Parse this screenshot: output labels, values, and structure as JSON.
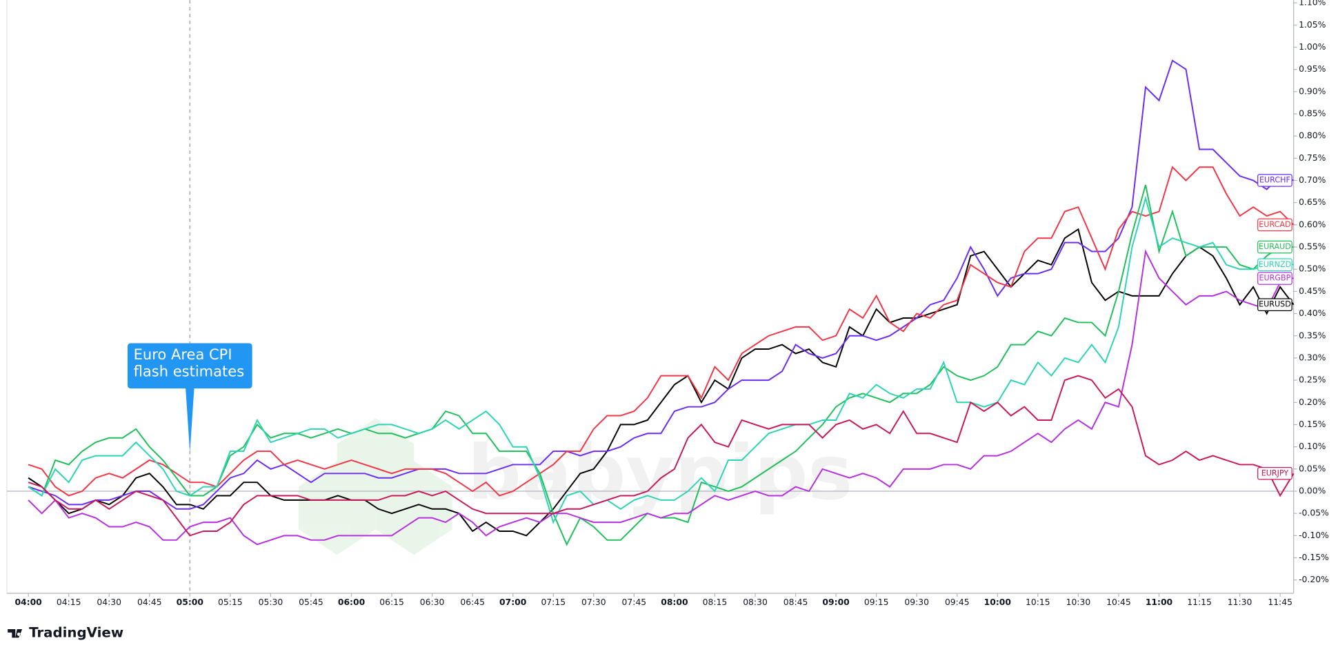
{
  "chart_data": {
    "type": "line",
    "annotation": {
      "lines": [
        "Euro Area CPI",
        "flash estimates"
      ],
      "x": "05:00"
    },
    "watermark": "babypips",
    "footer": "TradingView",
    "x": [
      "04:00",
      "04:05",
      "04:10",
      "04:15",
      "04:20",
      "04:25",
      "04:30",
      "04:35",
      "04:40",
      "04:45",
      "04:50",
      "04:55",
      "05:00",
      "05:05",
      "05:10",
      "05:15",
      "05:20",
      "05:25",
      "05:30",
      "05:35",
      "05:40",
      "05:45",
      "05:50",
      "05:55",
      "06:00",
      "06:05",
      "06:10",
      "06:15",
      "06:20",
      "06:25",
      "06:30",
      "06:35",
      "06:40",
      "06:45",
      "06:50",
      "06:55",
      "07:00",
      "07:05",
      "07:10",
      "07:15",
      "07:20",
      "07:25",
      "07:30",
      "07:35",
      "07:40",
      "07:45",
      "07:50",
      "07:55",
      "08:00",
      "08:05",
      "08:10",
      "08:15",
      "08:20",
      "08:25",
      "08:30",
      "08:35",
      "08:40",
      "08:45",
      "08:50",
      "08:55",
      "09:00",
      "09:05",
      "09:10",
      "09:15",
      "09:20",
      "09:25",
      "09:30",
      "09:35",
      "09:40",
      "09:45",
      "09:50",
      "09:55",
      "10:00",
      "10:05",
      "10:10",
      "10:15",
      "10:20",
      "10:25",
      "10:30",
      "10:35",
      "10:40",
      "10:45",
      "10:50",
      "10:55",
      "11:00",
      "11:05",
      "11:10",
      "11:15",
      "11:20",
      "11:25",
      "11:30",
      "11:35",
      "11:40",
      "11:45",
      "11:50"
    ],
    "series": [
      {
        "name": "EURUSD",
        "color": "#000000",
        "values": [
          0.03,
          0.01,
          -0.02,
          -0.05,
          -0.04,
          -0.02,
          -0.03,
          -0.01,
          0.03,
          0.04,
          0.01,
          -0.03,
          -0.03,
          -0.04,
          -0.01,
          -0.01,
          0.02,
          0.02,
          -0.01,
          -0.02,
          -0.02,
          -0.02,
          -0.02,
          -0.01,
          -0.02,
          -0.02,
          -0.04,
          -0.05,
          -0.04,
          -0.03,
          -0.04,
          -0.04,
          -0.05,
          -0.09,
          -0.07,
          -0.09,
          -0.09,
          -0.1,
          -0.07,
          -0.04,
          0.0,
          0.04,
          0.05,
          0.09,
          0.15,
          0.15,
          0.16,
          0.2,
          0.24,
          0.26,
          0.2,
          0.25,
          0.23,
          0.3,
          0.32,
          0.32,
          0.33,
          0.31,
          0.32,
          0.29,
          0.28,
          0.37,
          0.35,
          0.41,
          0.38,
          0.39,
          0.39,
          0.4,
          0.41,
          0.42,
          0.53,
          0.54,
          0.5,
          0.46,
          0.49,
          0.52,
          0.51,
          0.57,
          0.59,
          0.47,
          0.43,
          0.45,
          0.44,
          0.44,
          0.44,
          0.49,
          0.53,
          0.55,
          0.53,
          0.48,
          0.42,
          0.46,
          0.4,
          0.46,
          0.42
        ]
      },
      {
        "name": "EURCHF",
        "color": "#6a2cf5",
        "values": [
          0.01,
          0.0,
          -0.01,
          -0.03,
          -0.03,
          -0.02,
          -0.02,
          -0.01,
          0.0,
          0.0,
          -0.02,
          -0.04,
          -0.04,
          -0.03,
          0.0,
          0.03,
          0.04,
          0.07,
          0.05,
          0.06,
          0.04,
          0.02,
          0.04,
          0.04,
          0.04,
          0.04,
          0.03,
          0.03,
          0.04,
          0.05,
          0.05,
          0.05,
          0.04,
          0.04,
          0.04,
          0.05,
          0.06,
          0.06,
          0.06,
          0.09,
          0.09,
          0.08,
          0.09,
          0.09,
          0.1,
          0.12,
          0.13,
          0.13,
          0.18,
          0.19,
          0.19,
          0.2,
          0.23,
          0.25,
          0.25,
          0.25,
          0.27,
          0.33,
          0.31,
          0.3,
          0.31,
          0.35,
          0.35,
          0.34,
          0.35,
          0.37,
          0.39,
          0.42,
          0.43,
          0.48,
          0.55,
          0.5,
          0.44,
          0.48,
          0.49,
          0.49,
          0.5,
          0.56,
          0.56,
          0.54,
          0.54,
          0.57,
          0.64,
          0.91,
          0.88,
          0.97,
          0.95,
          0.77,
          0.77,
          0.74,
          0.71,
          0.7,
          0.68,
          0.71,
          0.7
        ]
      },
      {
        "name": "EURCAD",
        "color": "#f23645",
        "values": [
          0.06,
          0.05,
          0.01,
          -0.01,
          0.0,
          0.03,
          0.04,
          0.03,
          0.05,
          0.07,
          0.06,
          0.04,
          0.02,
          0.02,
          0.01,
          0.04,
          0.07,
          0.09,
          0.09,
          0.06,
          0.07,
          0.06,
          0.05,
          0.06,
          0.07,
          0.06,
          0.05,
          0.04,
          0.05,
          0.05,
          0.05,
          0.04,
          0.02,
          0.0,
          0.02,
          -0.01,
          0.0,
          0.02,
          0.04,
          0.06,
          0.09,
          0.09,
          0.14,
          0.17,
          0.17,
          0.18,
          0.21,
          0.26,
          0.26,
          0.26,
          0.21,
          0.28,
          0.25,
          0.31,
          0.33,
          0.35,
          0.36,
          0.37,
          0.37,
          0.34,
          0.35,
          0.41,
          0.39,
          0.44,
          0.38,
          0.36,
          0.4,
          0.39,
          0.42,
          0.43,
          0.51,
          0.49,
          0.47,
          0.46,
          0.54,
          0.57,
          0.57,
          0.63,
          0.64,
          0.57,
          0.5,
          0.59,
          0.63,
          0.62,
          0.63,
          0.73,
          0.7,
          0.73,
          0.73,
          0.67,
          0.62,
          0.64,
          0.62,
          0.63,
          0.6
        ]
      },
      {
        "name": "EURAUD",
        "color": "#1fbf5a",
        "values": [
          0.01,
          -0.01,
          0.07,
          0.06,
          0.09,
          0.11,
          0.12,
          0.12,
          0.14,
          0.1,
          0.07,
          0.03,
          -0.01,
          -0.01,
          0.01,
          0.08,
          0.1,
          0.15,
          0.12,
          0.13,
          0.13,
          0.12,
          0.13,
          0.14,
          0.13,
          0.14,
          0.13,
          0.13,
          0.12,
          0.13,
          0.14,
          0.18,
          0.17,
          0.13,
          0.13,
          0.09,
          0.09,
          0.09,
          0.04,
          -0.05,
          -0.12,
          -0.06,
          -0.08,
          -0.11,
          -0.11,
          -0.08,
          -0.05,
          -0.06,
          -0.06,
          -0.07,
          0.02,
          0.01,
          0.0,
          0.01,
          0.03,
          0.05,
          0.07,
          0.09,
          0.12,
          0.15,
          0.19,
          0.21,
          0.22,
          0.21,
          0.2,
          0.22,
          0.22,
          0.24,
          0.28,
          0.26,
          0.25,
          0.26,
          0.28,
          0.33,
          0.33,
          0.36,
          0.35,
          0.39,
          0.38,
          0.38,
          0.35,
          0.45,
          0.58,
          0.69,
          0.54,
          0.63,
          0.53,
          0.55,
          0.55,
          0.55,
          0.51,
          0.5,
          0.53,
          0.55,
          0.55
        ]
      },
      {
        "name": "EURNZD",
        "color": "#2dd4b4",
        "values": [
          0.01,
          -0.01,
          0.05,
          0.02,
          0.07,
          0.08,
          0.08,
          0.08,
          0.11,
          0.08,
          0.05,
          0.0,
          -0.01,
          0.01,
          0.01,
          0.09,
          0.09,
          0.16,
          0.11,
          0.12,
          0.13,
          0.14,
          0.14,
          0.12,
          0.13,
          0.14,
          0.15,
          0.15,
          0.14,
          0.13,
          0.14,
          0.16,
          0.14,
          0.16,
          0.18,
          0.15,
          0.1,
          0.1,
          0.03,
          -0.07,
          -0.01,
          0.0,
          -0.03,
          -0.02,
          -0.04,
          -0.02,
          -0.01,
          -0.02,
          -0.02,
          0.0,
          0.03,
          0.0,
          0.07,
          0.07,
          0.1,
          0.13,
          0.14,
          0.15,
          0.15,
          0.16,
          0.16,
          0.22,
          0.21,
          0.24,
          0.22,
          0.21,
          0.23,
          0.23,
          0.29,
          0.2,
          0.2,
          0.19,
          0.2,
          0.25,
          0.24,
          0.29,
          0.26,
          0.3,
          0.29,
          0.33,
          0.29,
          0.37,
          0.55,
          0.66,
          0.55,
          0.57,
          0.56,
          0.55,
          0.56,
          0.51,
          0.5,
          0.5,
          0.51,
          0.52,
          0.51
        ]
      },
      {
        "name": "EURGBP",
        "color": "#b62fe0",
        "values": [
          -0.02,
          -0.05,
          -0.02,
          -0.06,
          -0.05,
          -0.06,
          -0.08,
          -0.08,
          -0.07,
          -0.08,
          -0.11,
          -0.11,
          -0.08,
          -0.07,
          -0.07,
          -0.06,
          -0.1,
          -0.12,
          -0.11,
          -0.1,
          -0.1,
          -0.11,
          -0.11,
          -0.1,
          -0.1,
          -0.1,
          -0.1,
          -0.1,
          -0.08,
          -0.06,
          -0.06,
          -0.07,
          -0.05,
          -0.07,
          -0.1,
          -0.08,
          -0.07,
          -0.06,
          -0.07,
          -0.05,
          -0.05,
          -0.06,
          -0.07,
          -0.07,
          -0.07,
          -0.06,
          -0.05,
          -0.06,
          -0.05,
          -0.05,
          -0.03,
          -0.01,
          -0.02,
          -0.01,
          0.0,
          -0.01,
          -0.01,
          0.01,
          0.0,
          0.05,
          0.04,
          0.03,
          0.04,
          0.03,
          0.01,
          0.05,
          0.05,
          0.05,
          0.06,
          0.06,
          0.05,
          0.08,
          0.08,
          0.09,
          0.11,
          0.13,
          0.11,
          0.14,
          0.16,
          0.14,
          0.2,
          0.19,
          0.33,
          0.54,
          0.48,
          0.45,
          0.42,
          0.44,
          0.44,
          0.45,
          0.43,
          0.42,
          0.41,
          0.47,
          0.48
        ]
      },
      {
        "name": "EURJPY",
        "color": "#c8175a",
        "values": [
          0.02,
          0.01,
          -0.02,
          -0.04,
          -0.04,
          -0.02,
          -0.04,
          -0.02,
          0.0,
          -0.01,
          -0.02,
          -0.06,
          -0.1,
          -0.09,
          -0.09,
          -0.07,
          -0.03,
          -0.01,
          -0.01,
          -0.01,
          -0.01,
          -0.02,
          -0.02,
          -0.02,
          -0.02,
          -0.02,
          -0.02,
          -0.01,
          -0.01,
          0.0,
          -0.01,
          0.0,
          -0.02,
          -0.04,
          -0.05,
          -0.05,
          -0.05,
          -0.05,
          -0.05,
          -0.05,
          -0.04,
          -0.04,
          -0.03,
          -0.02,
          -0.01,
          -0.01,
          0.0,
          0.03,
          0.05,
          0.12,
          0.15,
          0.11,
          0.1,
          0.16,
          0.15,
          0.14,
          0.15,
          0.15,
          0.15,
          0.12,
          0.15,
          0.16,
          0.14,
          0.15,
          0.13,
          0.18,
          0.13,
          0.13,
          0.12,
          0.11,
          0.2,
          0.18,
          0.2,
          0.17,
          0.19,
          0.16,
          0.16,
          0.25,
          0.26,
          0.25,
          0.21,
          0.23,
          0.19,
          0.08,
          0.06,
          0.07,
          0.09,
          0.07,
          0.08,
          0.07,
          0.06,
          0.06,
          0.05,
          -0.01,
          0.04
        ]
      }
    ],
    "xlim": [
      "03:52",
      "11:50"
    ],
    "xticks": [
      "04:00",
      "04:15",
      "04:30",
      "04:45",
      "05:00",
      "05:15",
      "05:30",
      "05:45",
      "06:00",
      "06:15",
      "06:30",
      "06:45",
      "07:00",
      "07:15",
      "07:30",
      "07:45",
      "08:00",
      "08:15",
      "08:30",
      "08:45",
      "09:00",
      "09:15",
      "09:30",
      "09:45",
      "10:00",
      "10:15",
      "10:30",
      "10:45",
      "11:00",
      "11:15",
      "11:30",
      "11:45"
    ],
    "ylim": [
      -0.23,
      1.11
    ],
    "yticks": [
      {
        "value": -0.2,
        "label": "-0.20%"
      },
      {
        "value": -0.15,
        "label": "-0.15%"
      },
      {
        "value": -0.1,
        "label": "-0.10%"
      },
      {
        "value": -0.05,
        "label": "-0.05%"
      },
      {
        "value": 0,
        "label": "0.00%"
      },
      {
        "value": 0.05,
        "label": "0.05%"
      },
      {
        "value": 0.1,
        "label": "0.10%"
      },
      {
        "value": 0.15,
        "label": "0.15%"
      },
      {
        "value": 0.2,
        "label": "0.20%"
      },
      {
        "value": 0.25,
        "label": "0.25%"
      },
      {
        "value": 0.3,
        "label": "0.30%"
      },
      {
        "value": 0.35,
        "label": "0.35%"
      },
      {
        "value": 0.4,
        "label": "0.40%"
      },
      {
        "value": 0.45,
        "label": "0.45%"
      },
      {
        "value": 0.5,
        "label": "0.50%"
      },
      {
        "value": 0.55,
        "label": "0.55%"
      },
      {
        "value": 0.6,
        "label": "0.60%"
      },
      {
        "value": 0.65,
        "label": "0.65%"
      },
      {
        "value": 0.7,
        "label": "0.70%"
      },
      {
        "value": 0.75,
        "label": "0.75%"
      },
      {
        "value": 0.8,
        "label": "0.80%"
      },
      {
        "value": 0.85,
        "label": "0.85%"
      },
      {
        "value": 0.9,
        "label": "0.90%"
      },
      {
        "value": 0.95,
        "label": "0.95%"
      },
      {
        "value": 1,
        "label": "1.00%"
      },
      {
        "value": 1.05,
        "label": "1.05%"
      },
      {
        "value": 1.1,
        "label": "1.10%"
      }
    ],
    "grid": false
  }
}
